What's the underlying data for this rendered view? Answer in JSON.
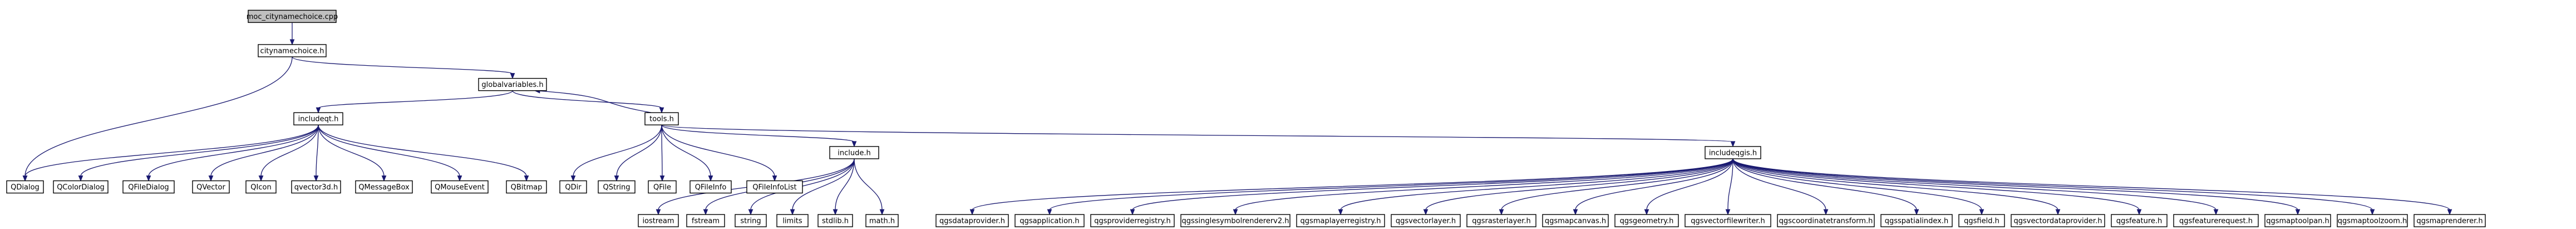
{
  "colors": {
    "edge": "#191970",
    "root_fill": "#bfbfbf",
    "node_fill": "#ffffff",
    "node_border": "#000000"
  },
  "diagram": {
    "type": "include-dependency-graph",
    "root": "moc_citynamechoice.cpp",
    "nodes": [
      {
        "id": "moc",
        "label": "moc_citynamechoice.cpp"
      },
      {
        "id": "citynamechoice",
        "label": "citynamechoice.h"
      },
      {
        "id": "globalvariables",
        "label": "globalvariables.h"
      },
      {
        "id": "includeqt",
        "label": "includeqt.h"
      },
      {
        "id": "tools",
        "label": "tools.h"
      },
      {
        "id": "include",
        "label": "include.h"
      },
      {
        "id": "includeqgis",
        "label": "includeqgis.h"
      },
      {
        "id": "QDialog",
        "label": "QDialog"
      },
      {
        "id": "QColorDialog",
        "label": "QColorDialog"
      },
      {
        "id": "QFileDialog",
        "label": "QFileDialog"
      },
      {
        "id": "QVector",
        "label": "QVector"
      },
      {
        "id": "QIcon",
        "label": "QIcon"
      },
      {
        "id": "qvector3d",
        "label": "qvector3d.h"
      },
      {
        "id": "QMessageBox",
        "label": "QMessageBox"
      },
      {
        "id": "QMouseEvent",
        "label": "QMouseEvent"
      },
      {
        "id": "QBitmap",
        "label": "QBitmap"
      },
      {
        "id": "QDir",
        "label": "QDir"
      },
      {
        "id": "QString",
        "label": "QString"
      },
      {
        "id": "QFile",
        "label": "QFile"
      },
      {
        "id": "QFileInfo",
        "label": "QFileInfo"
      },
      {
        "id": "QFileInfoList",
        "label": "QFileInfoList"
      },
      {
        "id": "iostream",
        "label": "iostream"
      },
      {
        "id": "fstream",
        "label": "fstream"
      },
      {
        "id": "string",
        "label": "string"
      },
      {
        "id": "limits",
        "label": "limits"
      },
      {
        "id": "stdlib",
        "label": "stdlib.h"
      },
      {
        "id": "math",
        "label": "math.h"
      },
      {
        "id": "qgsdataprovider",
        "label": "qgsdataprovider.h"
      },
      {
        "id": "qgsapplication",
        "label": "qgsapplication.h"
      },
      {
        "id": "qgsproviderregistry",
        "label": "qgsproviderregistry.h"
      },
      {
        "id": "qgssinglesymbolrendererv2",
        "label": "qgssinglesymbolrendererv2.h"
      },
      {
        "id": "qgsmaplayerregistry",
        "label": "qgsmaplayerregistry.h"
      },
      {
        "id": "qgsvectorlayer",
        "label": "qgsvectorlayer.h"
      },
      {
        "id": "qgsrasterlayer",
        "label": "qgsrasterlayer.h"
      },
      {
        "id": "qgsmapcanvas",
        "label": "qgsmapcanvas.h"
      },
      {
        "id": "qgsgeometry",
        "label": "qgsgeometry.h"
      },
      {
        "id": "qgsvectorfilewriter",
        "label": "qgsvectorfilewriter.h"
      },
      {
        "id": "qgscoordinatetransform",
        "label": "qgscoordinatetransform.h"
      },
      {
        "id": "qgsspatialindex",
        "label": "qgsspatialindex.h"
      },
      {
        "id": "qgsfield",
        "label": "qgsfield.h"
      },
      {
        "id": "qgsvectordataprovider",
        "label": "qgsvectordataprovider.h"
      },
      {
        "id": "qgsfeature",
        "label": "qgsfeature.h"
      },
      {
        "id": "qgsfeaturerequest",
        "label": "qgsfeaturerequest.h"
      },
      {
        "id": "qgsmaptoolpan",
        "label": "qgsmaptoolpan.h"
      },
      {
        "id": "qgsmaptoolzoom",
        "label": "qgsmaptoolzoom.h"
      },
      {
        "id": "qgsmaprenderer",
        "label": "qgsmaprenderer.h"
      }
    ],
    "edges": [
      [
        "moc",
        "citynamechoice"
      ],
      [
        "citynamechoice",
        "QDialog"
      ],
      [
        "citynamechoice",
        "globalvariables"
      ],
      [
        "globalvariables",
        "includeqt"
      ],
      [
        "globalvariables",
        "tools"
      ],
      [
        "tools",
        "globalvariables"
      ],
      [
        "includeqt",
        "QDialog"
      ],
      [
        "includeqt",
        "QColorDialog"
      ],
      [
        "includeqt",
        "QFileDialog"
      ],
      [
        "includeqt",
        "QVector"
      ],
      [
        "includeqt",
        "QIcon"
      ],
      [
        "includeqt",
        "qvector3d"
      ],
      [
        "includeqt",
        "QMessageBox"
      ],
      [
        "includeqt",
        "QMouseEvent"
      ],
      [
        "includeqt",
        "QBitmap"
      ],
      [
        "tools",
        "QDir"
      ],
      [
        "tools",
        "QString"
      ],
      [
        "tools",
        "QFile"
      ],
      [
        "tools",
        "QFileInfo"
      ],
      [
        "tools",
        "QFileInfoList"
      ],
      [
        "tools",
        "include"
      ],
      [
        "tools",
        "includeqgis"
      ],
      [
        "include",
        "iostream"
      ],
      [
        "include",
        "fstream"
      ],
      [
        "include",
        "string"
      ],
      [
        "include",
        "limits"
      ],
      [
        "include",
        "stdlib"
      ],
      [
        "include",
        "math"
      ],
      [
        "includeqgis",
        "qgsdataprovider"
      ],
      [
        "includeqgis",
        "qgsapplication"
      ],
      [
        "includeqgis",
        "qgsproviderregistry"
      ],
      [
        "includeqgis",
        "qgssinglesymbolrendererv2"
      ],
      [
        "includeqgis",
        "qgsmaplayerregistry"
      ],
      [
        "includeqgis",
        "qgsvectorlayer"
      ],
      [
        "includeqgis",
        "qgsrasterlayer"
      ],
      [
        "includeqgis",
        "qgsmapcanvas"
      ],
      [
        "includeqgis",
        "qgsgeometry"
      ],
      [
        "includeqgis",
        "qgsvectorfilewriter"
      ],
      [
        "includeqgis",
        "qgscoordinatetransform"
      ],
      [
        "includeqgis",
        "qgsspatialindex"
      ],
      [
        "includeqgis",
        "qgsfield"
      ],
      [
        "includeqgis",
        "qgsvectordataprovider"
      ],
      [
        "includeqgis",
        "qgsfeature"
      ],
      [
        "includeqgis",
        "qgsfeaturerequest"
      ],
      [
        "includeqgis",
        "qgsmaptoolpan"
      ],
      [
        "includeqgis",
        "qgsmaptoolzoom"
      ],
      [
        "includeqgis",
        "qgsmaprenderer"
      ]
    ]
  }
}
